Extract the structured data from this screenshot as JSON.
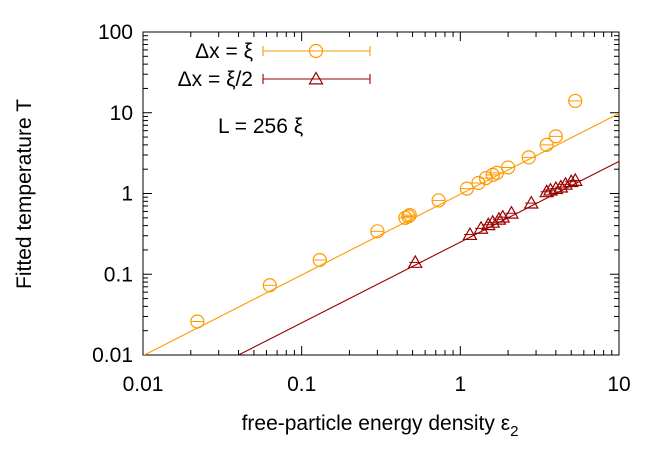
{
  "chart_data": {
    "type": "scatter",
    "xscale": "log",
    "yscale": "log",
    "xlim": [
      0.01,
      10
    ],
    "ylim": [
      0.01,
      100
    ],
    "xlabel": "free-particle energy density ε",
    "xlabel_sub": "2",
    "ylabel": "Fitted temperature T",
    "x_ticks": [
      0.01,
      0.1,
      1,
      10
    ],
    "x_tick_labels": [
      "0.01",
      "0.1",
      "1",
      "10"
    ],
    "y_ticks": [
      0.01,
      0.1,
      1,
      10,
      100
    ],
    "y_tick_labels": [
      "0.01",
      "0.1",
      "1",
      "10",
      "100"
    ],
    "annotation": "L = 256 ξ",
    "legend_position": "top-left",
    "series": [
      {
        "name": "Δx = ξ",
        "marker": "circle",
        "color": "#ff9900",
        "x": [
          0.022,
          0.063,
          0.13,
          0.3,
          0.45,
          0.47,
          0.48,
          0.73,
          1.1,
          1.3,
          1.45,
          1.6,
          1.7,
          2.0,
          2.7,
          3.5,
          4.0,
          5.3
        ],
        "y": [
          0.026,
          0.073,
          0.15,
          0.34,
          0.5,
          0.52,
          0.54,
          0.82,
          1.15,
          1.35,
          1.55,
          1.7,
          1.8,
          2.1,
          2.8,
          4.0,
          5.1,
          14.0
        ],
        "fit": {
          "x": [
            0.01,
            10
          ],
          "y": [
            0.0098,
            9.8
          ]
        }
      },
      {
        "name": "Δx = ξ/2",
        "marker": "triangle",
        "color": "#990000",
        "x": [
          0.52,
          1.15,
          1.35,
          1.5,
          1.6,
          1.75,
          1.85,
          2.1,
          2.8,
          3.5,
          3.7,
          4.0,
          4.3,
          4.6,
          5.0,
          5.3
        ],
        "y": [
          0.14,
          0.31,
          0.37,
          0.41,
          0.44,
          0.48,
          0.51,
          0.57,
          0.76,
          1.05,
          1.1,
          1.15,
          1.2,
          1.3,
          1.4,
          1.45
        ],
        "fit": {
          "x": [
            0.04,
            10
          ],
          "y": [
            0.01,
            2.5
          ]
        }
      }
    ]
  }
}
